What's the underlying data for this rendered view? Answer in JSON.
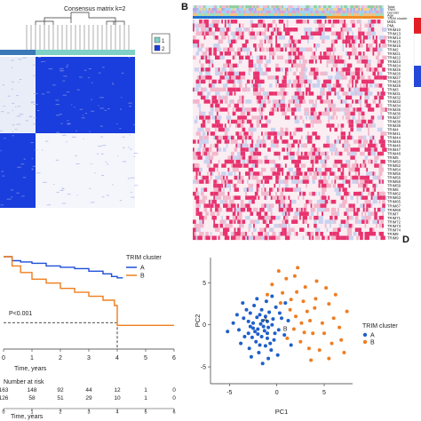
{
  "panel_a": {
    "title": "Consensus matrix k=2",
    "legend": [
      "1",
      "2"
    ],
    "colors": {
      "blue": "#1a3ddd",
      "teal": "#7fd0c6",
      "dark_blue": "#3a78b8",
      "white": "#ffffff"
    }
  },
  "panel_b": {
    "label": "B",
    "annotation_rows": [
      "Tstat",
      "TNM",
      "Gender",
      "Age",
      "TRIM cluster"
    ],
    "genes": [
      "MID1",
      "PML",
      "TRIM10",
      "TRIM13",
      "TRIM14",
      "TRIM15",
      "TRIM16",
      "TRIM2",
      "TRIM21",
      "TRIM22",
      "TRIM23",
      "TRIM24",
      "TRIM25",
      "TRIM26",
      "TRIM27",
      "TRIM28",
      "TRIM29",
      "TRIM3",
      "TRIM31",
      "TRIM32",
      "TRIM33",
      "TRIM34",
      "TRIM35",
      "TRIM36",
      "TRIM37",
      "TRIM38",
      "TRIM39",
      "TRIM4",
      "TRIM41",
      "TRIM44",
      "TRIM45",
      "TRIM46",
      "TRIM47",
      "TRIM48",
      "TRIM5",
      "TRIM50",
      "TRIM52",
      "TRIM54",
      "TRIM55",
      "TRIM56",
      "TRIM58",
      "TRIM59",
      "TRIM6",
      "TRIM62",
      "TRIM63",
      "TRIM65",
      "TRIM67",
      "TRIM68",
      "TRIM7",
      "TRIM71",
      "TRIM72",
      "TRIM73",
      "TRIM74",
      "TRIM8",
      "TRIM9"
    ],
    "colors": {
      "high": "#e8336f",
      "low": "#ffffff",
      "mid": "#f3b8cc",
      "legend_red": "#e21d24",
      "legend_blue": "#2548d9"
    }
  },
  "panel_c": {
    "legend_title": "TRIM cluster",
    "legend_items": [
      "A",
      "B"
    ],
    "pvalue": "P<0.001",
    "x_ticks": [
      "0",
      "1",
      "2",
      "3",
      "4",
      "5",
      "6"
    ],
    "xlabel": "Time, years",
    "risk_title": "Number at risk",
    "risk_rows": [
      [
        "163",
        "148",
        "92",
        "44",
        "12",
        "1",
        "0"
      ],
      [
        "126",
        "58",
        "51",
        "29",
        "10",
        "1",
        "0"
      ]
    ],
    "colors": {
      "A": "#1f4fd8",
      "B": "#f07e1e"
    }
  },
  "panel_d": {
    "label": "D",
    "xlabel": "PC1",
    "ylabel": "PC2",
    "x_ticks": [
      "-5",
      "0",
      "5"
    ],
    "y_ticks": [
      "5",
      "0",
      "-5"
    ],
    "legend_title": "TRIM cluster",
    "legend_items": [
      "A",
      "B"
    ],
    "annotations": [
      "A",
      "B"
    ],
    "colors": {
      "A": "#1f5fc8",
      "B": "#ef7d22"
    }
  },
  "chart_data": [
    {
      "type": "line",
      "title": "",
      "xlabel": "Time, years",
      "ylabel": "",
      "xlim": [
        0,
        6
      ],
      "ylim": [
        0,
        1
      ],
      "series": [
        {
          "name": "A",
          "x": [
            0,
            0.3,
            0.6,
            1.0,
            1.5,
            2.0,
            2.5,
            3.0,
            3.5,
            3.8,
            4.0,
            4.2
          ],
          "values": [
            1.0,
            0.97,
            0.96,
            0.95,
            0.93,
            0.92,
            0.91,
            0.89,
            0.87,
            0.85,
            0.84,
            0.84
          ]
        },
        {
          "name": "B",
          "x": [
            0,
            0.3,
            0.6,
            1.0,
            1.5,
            2.0,
            2.5,
            3.0,
            3.5,
            3.9,
            4.0,
            4.5,
            5.0,
            5.5,
            6.0
          ],
          "values": [
            1.0,
            0.93,
            0.88,
            0.83,
            0.8,
            0.76,
            0.73,
            0.7,
            0.67,
            0.63,
            0.48,
            0.48,
            0.48,
            0.48,
            0.48
          ]
        }
      ]
    },
    {
      "type": "scatter",
      "title": "",
      "xlabel": "PC1",
      "ylabel": "PC2",
      "xlim": [
        -7,
        8
      ],
      "ylim": [
        -7,
        8
      ],
      "series": [
        {
          "name": "A",
          "points": [
            [
              -1.5,
              0.5
            ],
            [
              -2,
              -0.5
            ],
            [
              -1,
              -1
            ],
            [
              -2.5,
              0.2
            ],
            [
              -3,
              -1
            ],
            [
              -1.8,
              1.2
            ],
            [
              -0.5,
              0
            ],
            [
              -2.2,
              -2
            ],
            [
              -1.2,
              -2.5
            ],
            [
              -3.5,
              0.8
            ],
            [
              -0.8,
              1.5
            ],
            [
              -2.8,
              -0.2
            ],
            [
              -1.6,
              -1.4
            ],
            [
              0.2,
              -0.6
            ],
            [
              -0.3,
              -1.8
            ],
            [
              -2.1,
              0.9
            ],
            [
              -4,
              -0.6
            ],
            [
              -1,
              0.4
            ],
            [
              -1.4,
              -0.2
            ],
            [
              -2.6,
              -1.5
            ],
            [
              -0.6,
              -3
            ],
            [
              -1.9,
              -3.3
            ],
            [
              0.5,
              0.8
            ],
            [
              -3.2,
              1.8
            ],
            [
              -2.4,
              2.3
            ],
            [
              -0.1,
              2.1
            ],
            [
              -1.1,
              2.8
            ],
            [
              -4.6,
              0.2
            ],
            [
              -3.8,
              -2.2
            ],
            [
              -0.9,
              -4
            ],
            [
              -2.7,
              -3.8
            ],
            [
              0.8,
              -1.2
            ],
            [
              1.2,
              0.5
            ],
            [
              -1.3,
              -0.7
            ],
            [
              -2.0,
              -1.1
            ],
            [
              -0.4,
              0.7
            ],
            [
              -1.7,
              0.1
            ],
            [
              -3.0,
              0.4
            ],
            [
              -2.3,
              -0.8
            ],
            [
              -0.2,
              -1.0
            ],
            [
              -1.0,
              -1.6
            ],
            [
              -1.6,
              1.8
            ],
            [
              -2.9,
              -2.8
            ],
            [
              -0.7,
              -2.2
            ],
            [
              0.3,
              1.4
            ],
            [
              -3.4,
              -1.4
            ],
            [
              -4.2,
              1.2
            ],
            [
              -1.5,
              -4.6
            ],
            [
              0.1,
              -3.6
            ],
            [
              -2.1,
              3.1
            ],
            [
              -0.5,
              3.4
            ],
            [
              1.5,
              -2.4
            ],
            [
              -5.2,
              -0.8
            ],
            [
              -3.6,
              2.6
            ],
            [
              0.9,
              2.6
            ],
            [
              -1.2,
              1.0
            ],
            [
              -2.5,
              -0.4
            ],
            [
              -0.9,
              -0.3
            ],
            [
              -1.8,
              -2.4
            ],
            [
              -2.8,
              1.4
            ]
          ]
        },
        {
          "name": "B",
          "points": [
            [
              2,
              1
            ],
            [
              3.5,
              0.5
            ],
            [
              1.5,
              3
            ],
            [
              4,
              2
            ],
            [
              5,
              -1
            ],
            [
              2.5,
              -2
            ],
            [
              6,
              0.8
            ],
            [
              3,
              4.5
            ],
            [
              1,
              5.5
            ],
            [
              4.5,
              -3
            ],
            [
              5.5,
              2.5
            ],
            [
              2.8,
              2.8
            ],
            [
              1.8,
              -0.5
            ],
            [
              6.8,
              -1.8
            ],
            [
              3.8,
              -1
            ],
            [
              0.6,
              3.8
            ],
            [
              2.2,
              6.8
            ],
            [
              4.2,
              5.2
            ],
            [
              7.1,
              -3.3
            ],
            [
              5.8,
              -2.2
            ],
            [
              3.2,
              1.6
            ],
            [
              1.4,
              1.8
            ],
            [
              2.6,
              0.2
            ],
            [
              6.2,
              3.6
            ],
            [
              0.2,
              6.4
            ],
            [
              4.8,
              0.2
            ],
            [
              -0.5,
              4.8
            ],
            [
              1.1,
              -1.6
            ],
            [
              3.6,
              -4.2
            ],
            [
              5.2,
              4.4
            ],
            [
              2.1,
              3.9
            ],
            [
              7.4,
              1.6
            ],
            [
              0.4,
              2.6
            ],
            [
              4.1,
              3.1
            ],
            [
              1.9,
              5.8
            ],
            [
              6.6,
              -0.3
            ],
            [
              3.4,
              -2.8
            ],
            [
              -1.0,
              3.6
            ],
            [
              2.9,
              -0.9
            ],
            [
              5.5,
              -4.0
            ]
          ]
        }
      ]
    }
  ]
}
